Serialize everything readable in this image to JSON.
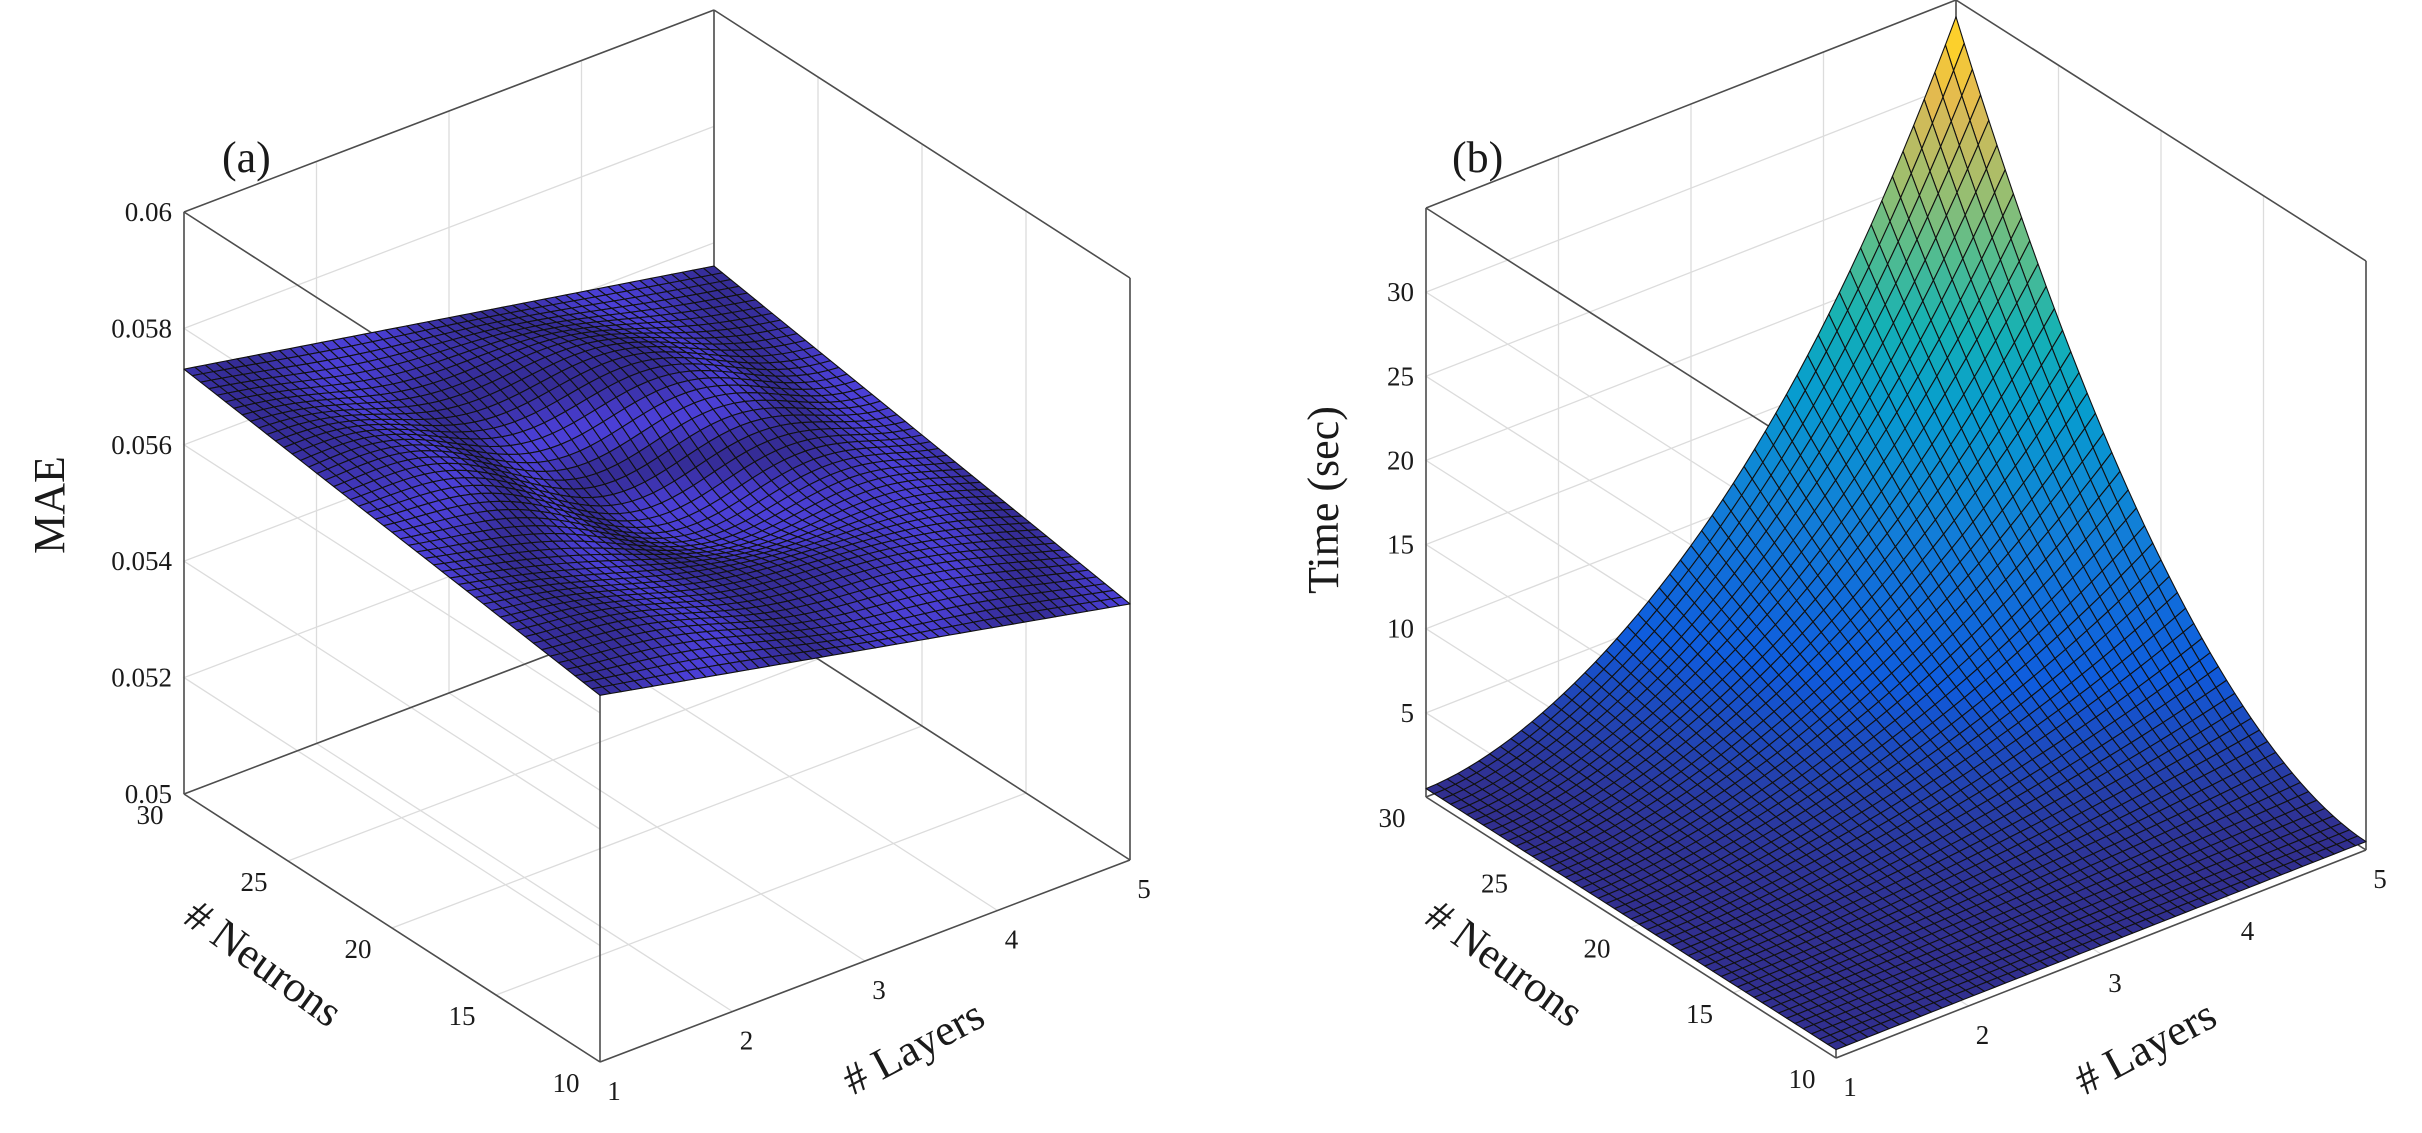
{
  "figure_title": "3D surface plots of MAE and training time versus number of layers and neurons",
  "chart_data": [
    {
      "type": "surface",
      "panel_label": "(a)",
      "zlabel": "MAE",
      "xlabel": "# Layers",
      "ylabel": "# Neurons",
      "xlim": [
        1,
        5
      ],
      "ylim": [
        10,
        30
      ],
      "zlim": [
        0.05,
        0.06
      ],
      "xticks": [
        1,
        2,
        3,
        4,
        5
      ],
      "yticks": [
        10,
        15,
        20,
        25,
        30
      ],
      "zticks": [
        "0.05",
        "0.052",
        "0.054",
        "0.056",
        "0.058",
        "0.06"
      ],
      "zticks_values": [
        0.05,
        0.052,
        0.054,
        0.056,
        0.058,
        0.06
      ],
      "grid": true,
      "colormap": "single-color",
      "face_color": "#4b3fd6",
      "edge_color": "#111111",
      "sample_points": [
        {
          "layers": 1,
          "neurons": 30,
          "mae": 0.0573
        },
        {
          "layers": 1,
          "neurons": 10,
          "mae": 0.0563
        },
        {
          "layers": 5,
          "neurons": 30,
          "mae": 0.0556
        },
        {
          "layers": 5,
          "neurons": 10,
          "mae": 0.0544
        },
        {
          "layers": 3,
          "neurons": 20,
          "mae": 0.0558
        }
      ]
    },
    {
      "type": "surface",
      "panel_label": "(b)",
      "zlabel": "Time (sec)",
      "xlabel": "# Layers",
      "ylabel": "# Neurons",
      "xlim": [
        1,
        5
      ],
      "ylim": [
        10,
        30
      ],
      "zlim": [
        0,
        35
      ],
      "xticks": [
        1,
        2,
        3,
        4,
        5
      ],
      "yticks": [
        10,
        15,
        20,
        25,
        30
      ],
      "zticks": [
        "5",
        "10",
        "15",
        "20",
        "25",
        "30"
      ],
      "zticks_values": [
        5,
        10,
        15,
        20,
        25,
        30
      ],
      "grid": true,
      "colormap": "parula",
      "edge_color": "#111111",
      "peak": {
        "layers": 5,
        "neurons": 30,
        "time": 34
      },
      "sample_points": [
        {
          "layers": 1,
          "neurons": 10,
          "time": 0.5
        },
        {
          "layers": 1,
          "neurons": 30,
          "time": 0.5
        },
        {
          "layers": 5,
          "neurons": 10,
          "time": 0.5
        },
        {
          "layers": 5,
          "neurons": 30,
          "time": 34
        }
      ]
    }
  ]
}
